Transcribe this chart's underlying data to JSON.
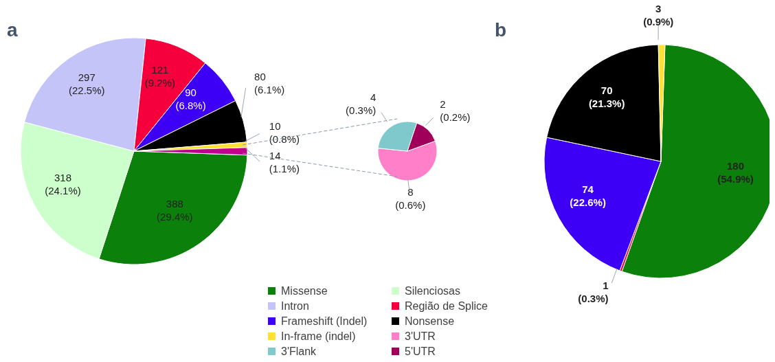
{
  "chart_data": [
    {
      "type": "pie",
      "title": "a",
      "categories": [
        "Missense",
        "Silenciosas",
        "Intron",
        "Região de Splice",
        "Frameshift (Indel)",
        "Nonsense",
        "In-frame (indel)",
        null
      ],
      "values": [
        388,
        318,
        297,
        121,
        90,
        80,
        10,
        14
      ],
      "colors": [
        "#0b800b",
        "#ccffcc",
        "#c4c4f8",
        "#f5003c",
        "#3d00f5",
        "#000000",
        "#ffe033",
        "#c0008c"
      ],
      "value_labels": [
        "388\n(29.4%)",
        "318\n(24.1%)",
        "297\n(22.5%)",
        "121\n(9.2%)",
        "90\n(6.8%)",
        "80\n(6.1%)",
        "10\n(0.8%)",
        "14\n(1.1%)"
      ],
      "legend": "bottom"
    },
    {
      "type": "pie",
      "categories": [
        "3'UTR",
        "3'Flank",
        "5'UTR"
      ],
      "values": [
        8,
        4,
        2
      ],
      "colors": [
        "#ff7fc8",
        "#7fc8cc",
        "#a0005a"
      ],
      "value_labels": [
        "8\n(0.6%)",
        "4\n(0.3%)",
        "2\n(0.2%)"
      ],
      "legend": "bottom"
    },
    {
      "type": "pie",
      "title": "b",
      "categories": [
        null,
        null,
        null,
        null,
        null
      ],
      "values": [
        180,
        1,
        74,
        70,
        3
      ],
      "colors": [
        "#0b800b",
        "#f5003c",
        "#3d00f5",
        "#000000",
        "#ffe033"
      ],
      "value_labels": [
        "180\n(54.9%)",
        "1\n(0.3%)",
        "74\n(22.6%)",
        "70\n(21.3%)",
        "3\n(0.9%)"
      ]
    }
  ]
}
